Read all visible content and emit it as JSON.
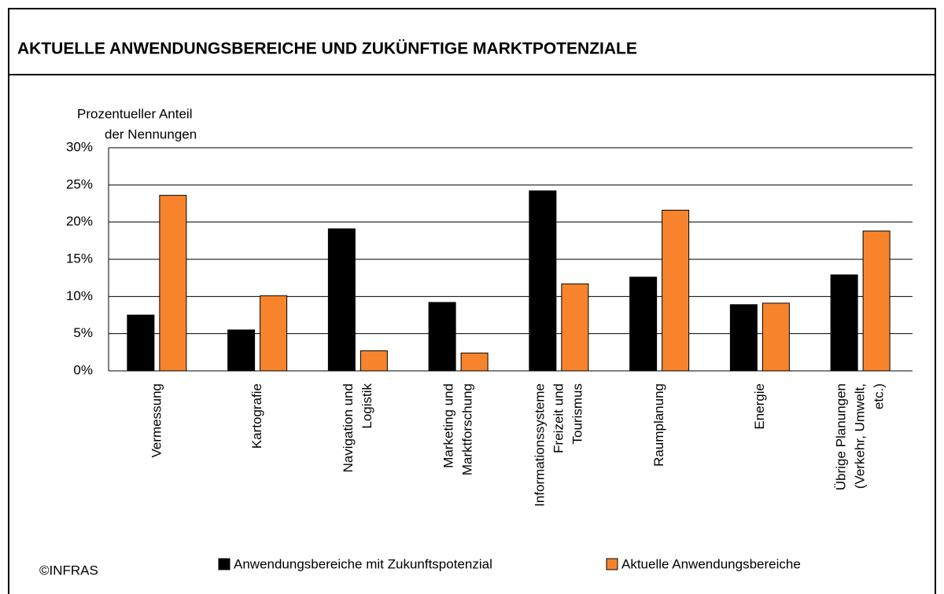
{
  "chart_data": {
    "type": "bar",
    "title": "AKTUELLE ANWENDUNGSBEREICHE UND ZUKÜNFTIGE MARKTPOTENZIALE",
    "y_label": [
      "Prozentueller Anteil",
      "der Nennungen"
    ],
    "categories": [
      [
        "Vermessung"
      ],
      [
        "Kartografie"
      ],
      [
        "Navigation und",
        "Logistik"
      ],
      [
        "Marketing und",
        "Marktforschung"
      ],
      [
        "Informationssysteme",
        "Freizeit und",
        "Tourismus"
      ],
      [
        "Raumplanung"
      ],
      [
        "Energie"
      ],
      [
        "Übrige Planungen",
        "(Verkehr, Umwelt,",
        "etc.)"
      ]
    ],
    "series": [
      {
        "name": "Anwendungsbereiche mit Zukunftspotenzial",
        "color": "#000000",
        "values": [
          7.5,
          5.5,
          19.1,
          9.2,
          24.2,
          12.6,
          8.9,
          12.9
        ]
      },
      {
        "name": "Aktuelle Anwendungsbereiche",
        "color": "#f7842d",
        "values": [
          23.6,
          10.1,
          2.7,
          2.4,
          11.7,
          21.6,
          9.1,
          18.8
        ]
      }
    ],
    "ylim": [
      0,
      30
    ],
    "yticks": [
      {
        "value": 0,
        "label": "0%"
      },
      {
        "value": 5,
        "label": "5%"
      },
      {
        "value": 10,
        "label": "10%"
      },
      {
        "value": 15,
        "label": "15%"
      },
      {
        "value": 20,
        "label": "20%"
      },
      {
        "value": 25,
        "label": "25%"
      },
      {
        "value": 30,
        "label": "30%"
      }
    ],
    "grid": true,
    "source": "©INFRAS"
  }
}
